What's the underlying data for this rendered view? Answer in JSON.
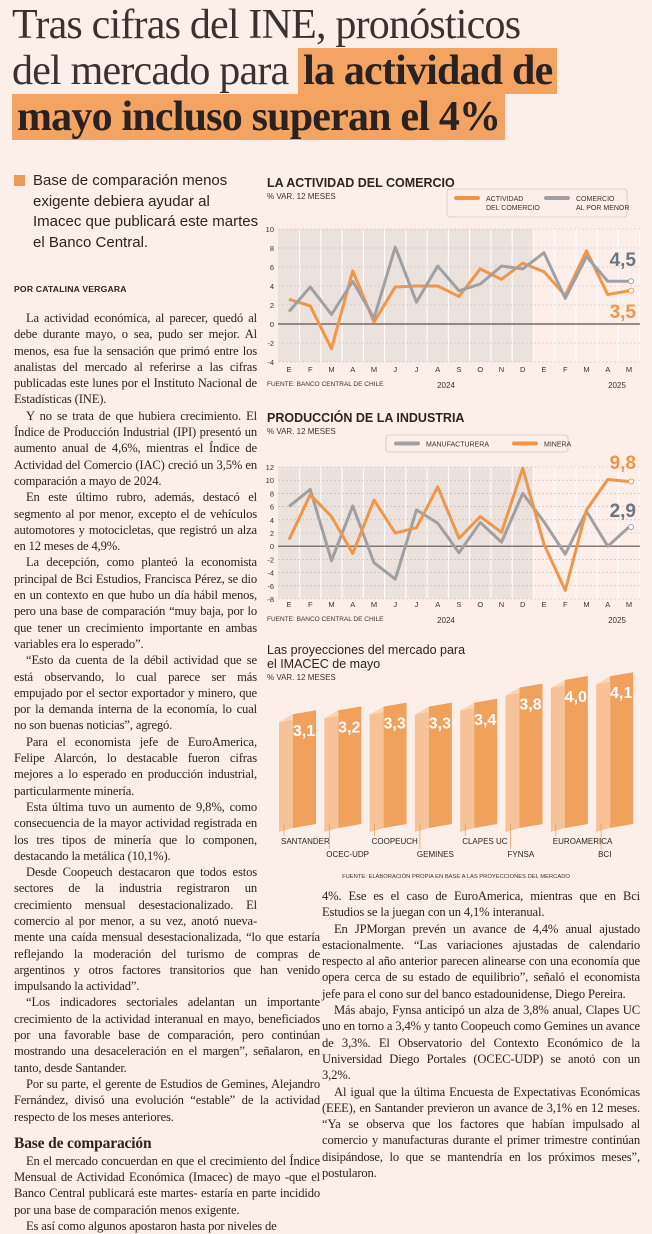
{
  "headline": {
    "line1": "Tras cifras del INE, pronósticos",
    "line2_plain": "del mercado para",
    "line2_highlight": "la actividad de",
    "line3_highlight": "mayo incluso superan el 4%"
  },
  "summary": "Base de comparación menos exigente debiera ayudar al Imacec que publicará este martes el Banco Central.",
  "byline": "POR CATALINA VERGARA",
  "column1": [
    "La actividad económica, al parecer, quedó al debe durante mayo, o sea, pudo ser mejor. Al menos, esa fue la sensación que primó entre los analistas del mercado al referirse a las cifras publicadas este lunes por el Instituto Nacional de Estadísticas (INE).",
    "Y no se trata de que hubiera crecimiento. El Índice de Producción Industrial (IPI) presentó un aumento anual de 4,6%, mientras el Índice de Actividad del Comercio (IAC) creció un 3,5% en comparación a mayo de 2024.",
    "En este último rubro, además, destacó el segmento al por menor, excepto el de vehículos automotores y motocicletas, que registró un alza en 12 meses de 4,9%.",
    "La decepción, como planteó la economista principal de Bci Estudios, Francisca Pérez, se dio en un contexto en que hubo un día hábil menos, pero una base de comparación “muy baja, por lo que tener un crecimiento importante en ambas variables era lo esperado”.",
    "“Esto da cuenta de la débil actividad que se está observando, lo cual parece ser más empujado por el sector exportador y minero, que por la demanda interna de la economía, lo cual no son buenas noticias”, agregó.",
    "Para el economista jefe de EuroAmerica, Felipe Alarcón, lo destacable fueron cifras mejores a lo esperado en producción industrial, particularmente minería.",
    "Esta última tuvo un aumento de 9,8%, como consecuencia de la mayor actividad registrada en los tres tipos de minería que lo componen, destacando la metálica (10,1%).",
    "Desde Coopeuch destacaron que todos estos sectores de la industria registraron un crecimiento mensual desestacionalizado. El comercio al por menor, a su vez, anotó nueva-"
  ],
  "column2": {
    "continuation": "mente una caída mensual desestacionalizada, “lo que estaría reflejando la moderación del turismo de compras de argentinos y otros factores transitorios que han venido impulsando la actividad”.",
    "paragraphs": [
      "“Los indicadores sectoriales adelantan un importante crecimiento de la actividad interanual en mayo, beneficiados por una favorable base de comparación, pero continúan mostrando una desaceleración en el margen”, señalaron, en tanto, desde Santander.",
      "Por su parte, el gerente de Estudios de Gemines, Alejandro Fernández, divisó una evolución “estable” de la actividad respecto de los meses anteriores."
    ],
    "subheading": "Base de comparación",
    "after": [
      "En el mercado concuerdan en que el crecimiento del Índice Mensual de Actividad Económica (Imacec) de mayo -que el Banco Central publicará este martes- estaría en parte incidido por una base de comparación menos exigente.",
      "Es así como algunos apostaron hasta por niveles de"
    ]
  },
  "column3": {
    "continuation": "4%. Ese es el caso de EuroAmerica, mientras que en Bci Estudios se la juegan con un 4,1% interanual.",
    "paragraphs": [
      "En JPMorgan prevén un avance de 4,4% anual ajustado estacionalmente. “Las variaciones ajustadas de calendario respecto al año anterior parecen alinearse con una economía que opera cerca de su estado de equilibrio”, señaló el economista jefe para el cono sur del banco estadounidense, Diego Pereira.",
      "Más abajo, Fynsa anticipó un alza de 3,8% anual, Clapes UC uno en torno a 3,4% y tanto Coopeuch como Gemines un avance de 3,3%. El Observatorio del Contexto Económico de la Universidad Diego Portales (OCEC-UDP) se anotó con un 3,2%.",
      "Al igual que la última Encuesta de Expectativas Económicas (EEE), en Santander previeron un avance de 3,1% en 12 meses. “Ya se observa que los factores que habían impulsado al comercio y manufacturas durante el primer trimestre continúan disipándose, lo que se mantendría en los próximos meses”, postularon."
    ]
  },
  "colors": {
    "orange": "#f0964a",
    "gray": "#a0a0a2",
    "highlight": "#f3a462",
    "background": "#fcefe9"
  },
  "chart_data": [
    {
      "type": "line",
      "title": "LA ACTIVIDAD DEL COMERCIO",
      "ylabel": "% VAR. 12 MESES",
      "x": [
        "E",
        "F",
        "M",
        "A",
        "M",
        "J",
        "J",
        "A",
        "S",
        "O",
        "N",
        "D",
        "E",
        "F",
        "M",
        "A",
        "M"
      ],
      "years": [
        "2024",
        "2025"
      ],
      "ylim": [
        -4,
        10
      ],
      "yticks": [
        10,
        8,
        6,
        4,
        2,
        0,
        -2,
        -4
      ],
      "series": [
        {
          "name": "ACTIVIDAD DEL COMERCIO",
          "legend": [
            "ACTIVIDAD",
            "DEL COMERCIO"
          ],
          "color": "#f0964a",
          "values": [
            2.6,
            1.9,
            -2.6,
            5.6,
            0.2,
            3.9,
            4.0,
            4.0,
            2.9,
            5.8,
            4.7,
            6.4,
            5.5,
            3.0,
            7.7,
            3.1,
            3.5
          ],
          "end_label": "3,5"
        },
        {
          "name": "COMERCIO AL POR MENOR",
          "legend": [
            "COMERCIO",
            "AL POR MENOR"
          ],
          "color": "#a0a0a2",
          "values": [
            1.3,
            3.9,
            1.0,
            4.5,
            0.6,
            8.1,
            2.3,
            6.1,
            3.5,
            4.2,
            6.1,
            5.8,
            7.5,
            2.7,
            7.1,
            4.5,
            4.5
          ],
          "end_label": "4,5"
        }
      ],
      "source": "FUENTE: BANCO CENTRAL DE CHILE"
    },
    {
      "type": "line",
      "title": "PRODUCCIÓN DE LA INDUSTRIA",
      "ylabel": "% VAR. 12 MESES",
      "x": [
        "E",
        "F",
        "M",
        "A",
        "M",
        "J",
        "J",
        "A",
        "S",
        "O",
        "N",
        "D",
        "E",
        "F",
        "M",
        "A",
        "M"
      ],
      "years": [
        "2024",
        "2025"
      ],
      "ylim": [
        -8,
        12
      ],
      "yticks": [
        12,
        10,
        8,
        6,
        4,
        2,
        0,
        -2,
        -4,
        -6,
        -8
      ],
      "series": [
        {
          "name": "MANUFACTURERA",
          "legend": [
            "MANUFACTURERA"
          ],
          "color": "#a0a0a2",
          "values": [
            6.0,
            8.6,
            -2.2,
            6.1,
            -2.5,
            -5.0,
            5.5,
            3.5,
            -1.0,
            3.6,
            0.6,
            8.0,
            3.7,
            -1.2,
            5.3,
            0.0,
            2.9
          ],
          "end_label": "2,9"
        },
        {
          "name": "MINERA",
          "legend": [
            "MINERA"
          ],
          "color": "#f0964a",
          "values": [
            1.0,
            7.8,
            4.5,
            -1.1,
            7.0,
            2.0,
            2.8,
            9.0,
            1.2,
            4.5,
            2.1,
            11.8,
            0.3,
            -6.7,
            5.5,
            10.1,
            9.8
          ],
          "end_label": "9,8"
        }
      ],
      "source": "FUENTE: BANCO CENTRAL DE CHILE"
    },
    {
      "type": "bar",
      "title": [
        "Las proyecciones del mercado para",
        "el IMACEC de mayo"
      ],
      "ylabel": "% VAR. 12 MESES",
      "categories": [
        "SANTANDER",
        "OCEC-UDP",
        "COOPEUCH",
        "GEMINES",
        "CLAPES UC",
        "FYNSA",
        "EUROAMERICA",
        "BCI"
      ],
      "values": [
        3.1,
        3.2,
        3.3,
        3.3,
        3.4,
        3.8,
        4.0,
        4.1
      ],
      "labels": [
        "3,1",
        "3,2",
        "3,3",
        "3,3",
        "3,4",
        "3,8",
        "4,0",
        "4,1"
      ],
      "source": "FUENTE: ELABORACIÓN PROPIA EN BASE A LAS PROYECCIONES DEL MERCADO"
    }
  ]
}
